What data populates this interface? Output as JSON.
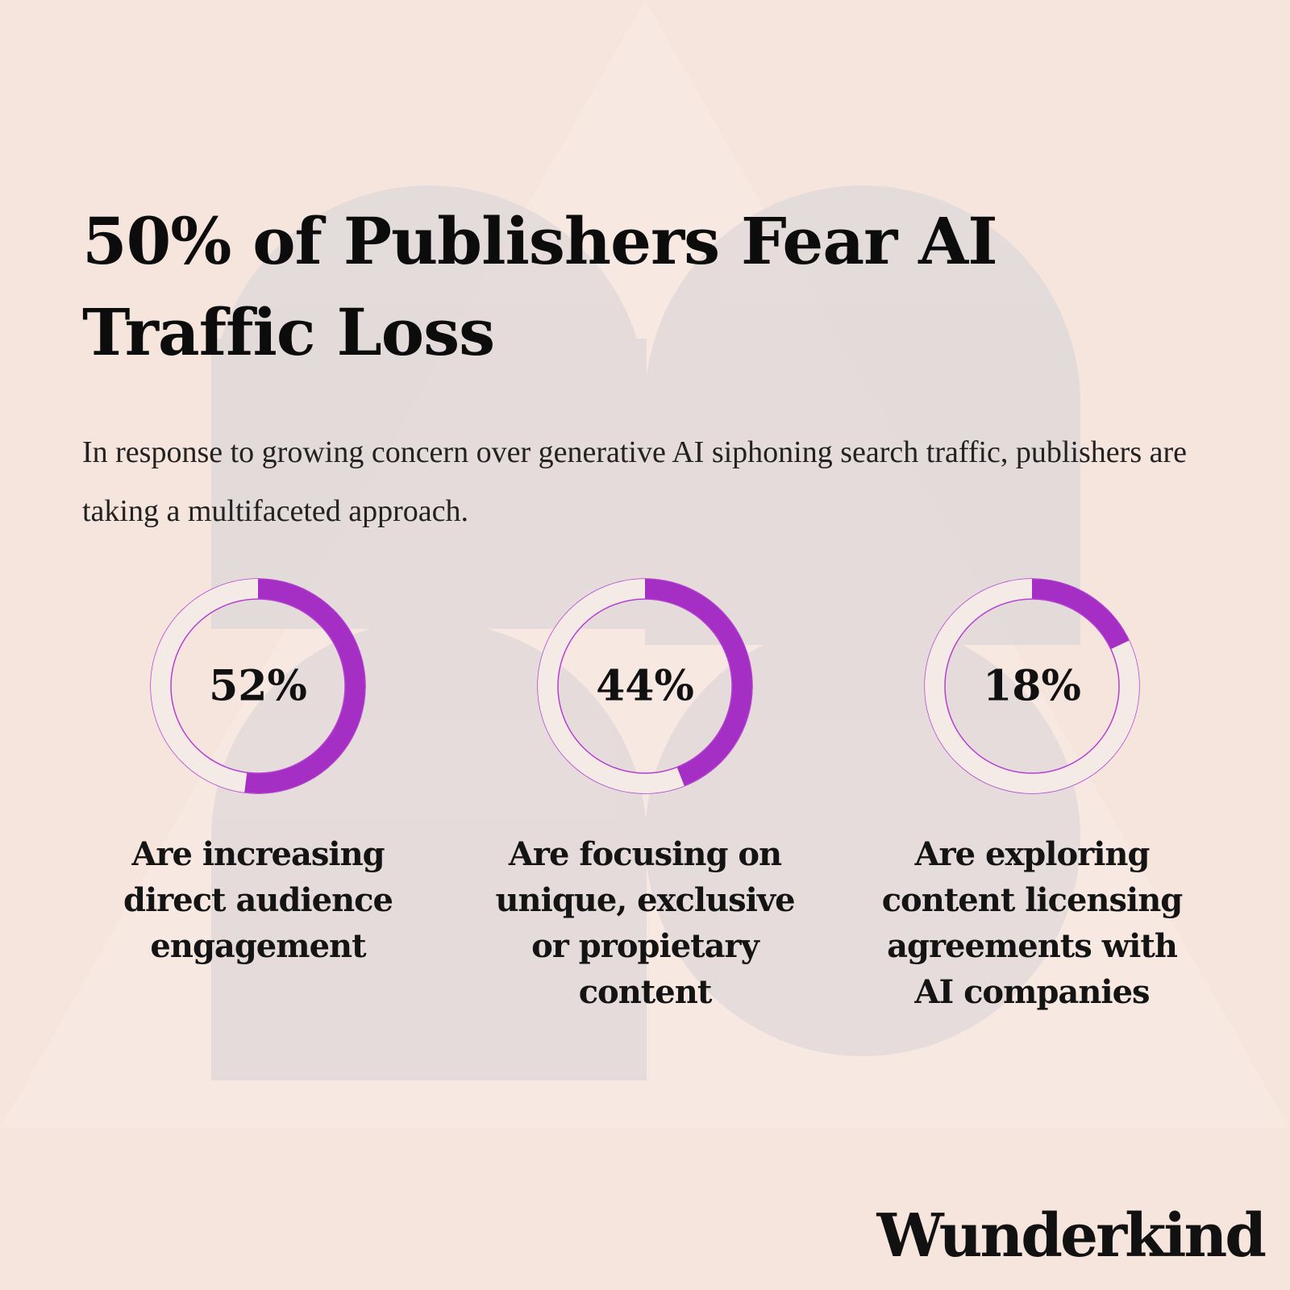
{
  "title": "50% of Publishers Fear AI Traffic Loss",
  "subtitle": "In response to growing concern over generative AI siphoning search traffic, publishers are taking a multifaceted approach.",
  "brand": "Wunderkind",
  "colors": {
    "background": "#f6e5dd",
    "ring_fill": "#a52ec4",
    "ring_track": "#f4ebe6",
    "ring_outline": "#b53fd2"
  },
  "chart_data": {
    "type": "pie",
    "title": "50% of Publishers Fear AI Traffic Loss",
    "unit": "%",
    "series": [
      {
        "label": "52%",
        "value": 52,
        "description": "Are increasing direct audience engagement"
      },
      {
        "label": "44%",
        "value": 44,
        "description": "Are focusing on unique, exclusive or propietary content"
      },
      {
        "label": "18%",
        "value": 18,
        "description": "Are exploring content licensing agreements with AI companies"
      }
    ]
  }
}
